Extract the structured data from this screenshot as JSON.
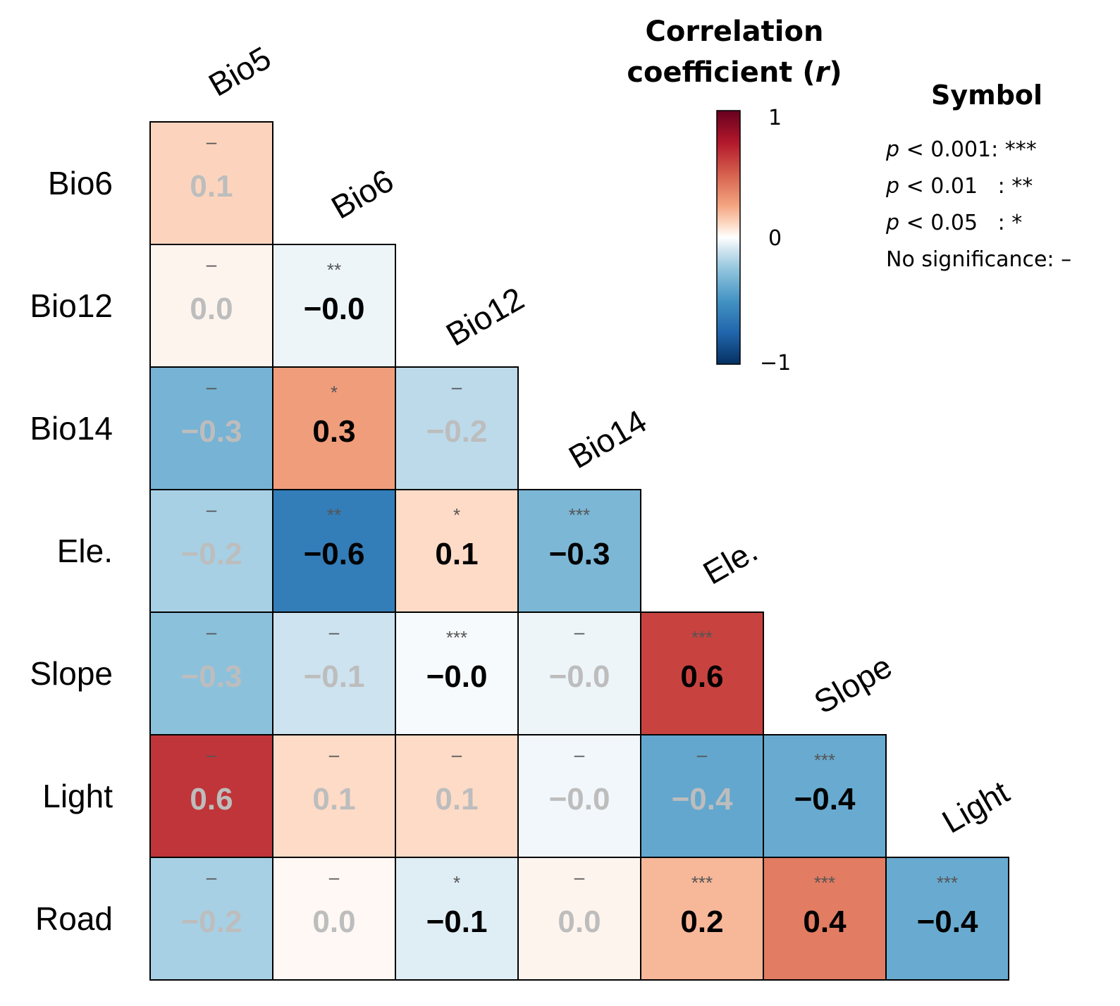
{
  "chart_data": {
    "type": "heatmap",
    "subtype": "lower-triangle correlation matrix",
    "column_labels": [
      "Bio5",
      "Bio6",
      "Bio12",
      "Bio14",
      "Ele.",
      "Slope",
      "Light"
    ],
    "row_labels": [
      "Bio6",
      "Bio12",
      "Bio14",
      "Ele.",
      "Slope",
      "Light",
      "Road"
    ],
    "cells": [
      [
        {
          "value": 0.12,
          "label": "0.1",
          "symbol": "–",
          "significant": false
        }
      ],
      [
        {
          "value": 0.03,
          "label": "0.0",
          "symbol": "–",
          "significant": false
        },
        {
          "value": -0.04,
          "label": "−0.0",
          "symbol": "**",
          "significant": true
        }
      ],
      [
        {
          "value": -0.34,
          "label": "−0.3",
          "symbol": "–",
          "significant": false
        },
        {
          "value": 0.28,
          "label": "0.3",
          "symbol": "*",
          "significant": true
        },
        {
          "value": -0.15,
          "label": "−0.2",
          "symbol": "–",
          "significant": false
        }
      ],
      [
        {
          "value": -0.2,
          "label": "−0.2",
          "symbol": "–",
          "significant": false
        },
        {
          "value": -0.62,
          "label": "−0.6",
          "symbol": "**",
          "significant": true
        },
        {
          "value": 0.1,
          "label": "0.1",
          "symbol": "*",
          "significant": true
        },
        {
          "value": -0.32,
          "label": "−0.3",
          "symbol": "***",
          "significant": true
        }
      ],
      [
        {
          "value": -0.27,
          "label": "−0.3",
          "symbol": "–",
          "significant": false
        },
        {
          "value": -0.11,
          "label": "−0.1",
          "symbol": "–",
          "significant": false
        },
        {
          "value": -0.02,
          "label": "−0.0",
          "symbol": "***",
          "significant": true
        },
        {
          "value": -0.04,
          "label": "−0.0",
          "symbol": "–",
          "significant": false
        },
        {
          "value": 0.6,
          "label": "0.6",
          "symbol": "***",
          "significant": true
        }
      ],
      [
        {
          "value": 0.65,
          "label": "0.6",
          "symbol": "–",
          "significant": false
        },
        {
          "value": 0.1,
          "label": "0.1",
          "symbol": "–",
          "significant": false
        },
        {
          "value": 0.1,
          "label": "0.1",
          "symbol": "–",
          "significant": false
        },
        {
          "value": -0.03,
          "label": "−0.0",
          "symbol": "–",
          "significant": false
        },
        {
          "value": -0.4,
          "label": "−0.4",
          "symbol": "–",
          "significant": false
        },
        {
          "value": -0.38,
          "label": "−0.4",
          "symbol": "***",
          "significant": true
        }
      ],
      [
        {
          "value": -0.2,
          "label": "−0.2",
          "symbol": "–",
          "significant": false
        },
        {
          "value": 0.02,
          "label": "0.0",
          "symbol": "–",
          "significant": false
        },
        {
          "value": -0.07,
          "label": "−0.1",
          "symbol": "*",
          "significant": true
        },
        {
          "value": 0.03,
          "label": "0.0",
          "symbol": "–",
          "significant": false
        },
        {
          "value": 0.2,
          "label": "0.2",
          "symbol": "***",
          "significant": true
        },
        {
          "value": 0.4,
          "label": "0.4",
          "symbol": "***",
          "significant": true
        },
        {
          "value": -0.38,
          "label": "−0.4",
          "symbol": "***",
          "significant": true
        }
      ]
    ],
    "colorbar": {
      "title_line1": "Correlation",
      "title_line2_prefix": "coefficient (",
      "title_line2_var": "r",
      "title_line2_suffix": ")",
      "range": [
        -1,
        1
      ],
      "ticks": [
        {
          "value": 1,
          "label": "1"
        },
        {
          "value": 0,
          "label": "0"
        },
        {
          "value": -1,
          "label": "−1"
        }
      ],
      "colors": {
        "negative": "#053061",
        "neutral": "#ffffff",
        "positive": "#67001f"
      }
    },
    "symbol_legend": {
      "title": "Symbol",
      "entries": [
        {
          "p": "p",
          "text": " < 0.001: ***"
        },
        {
          "p": "p",
          "text": " < 0.01   : **"
        },
        {
          "p": "p",
          "text": " < 0.05   : *"
        },
        {
          "p": "",
          "text": "No significance: –"
        }
      ]
    },
    "value_colors": {
      "significant": "#000000",
      "not_significant": "#bdbdbd"
    }
  }
}
